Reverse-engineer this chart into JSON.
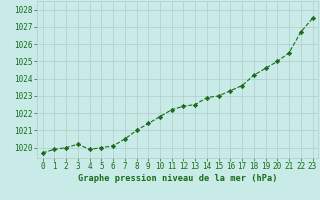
{
  "x": [
    0,
    1,
    2,
    3,
    4,
    5,
    6,
    7,
    8,
    9,
    10,
    11,
    12,
    13,
    14,
    15,
    16,
    17,
    18,
    19,
    20,
    21,
    22,
    23
  ],
  "y": [
    1019.7,
    1019.9,
    1020.0,
    1020.2,
    1019.9,
    1020.0,
    1020.1,
    1020.5,
    1021.0,
    1021.4,
    1021.8,
    1022.2,
    1022.4,
    1022.5,
    1022.9,
    1023.0,
    1023.3,
    1023.6,
    1024.2,
    1024.6,
    1025.0,
    1025.5,
    1026.7,
    1027.5
  ],
  "line_color": "#1a6b1a",
  "marker": "D",
  "marker_size": 2.2,
  "bg_color": "#c8ebe8",
  "grid_color": "#b0cccc",
  "xlabel": "Graphe pression niveau de la mer (hPa)",
  "xlabel_color": "#1a6b1a",
  "tick_label_color": "#1a6b1a",
  "ylim_min": 1019.4,
  "ylim_max": 1028.5,
  "yticks": [
    1020,
    1021,
    1022,
    1023,
    1024,
    1025,
    1026,
    1027,
    1028
  ],
  "xlim_min": -0.5,
  "xlim_max": 23.5,
  "xticks": [
    0,
    1,
    2,
    3,
    4,
    5,
    6,
    7,
    8,
    9,
    10,
    11,
    12,
    13,
    14,
    15,
    16,
    17,
    18,
    19,
    20,
    21,
    22,
    23
  ],
  "tick_fontsize": 5.5,
  "xlabel_fontsize": 6.2
}
